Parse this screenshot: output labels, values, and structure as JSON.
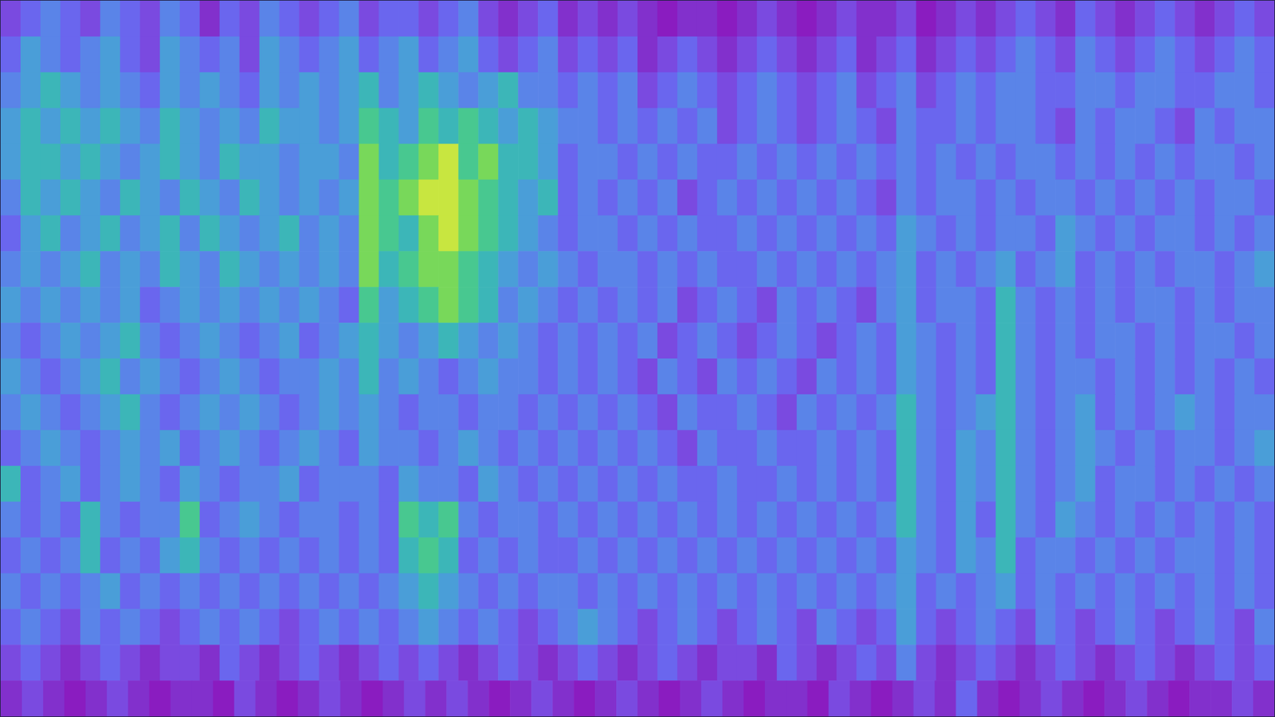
{
  "chart_data": {
    "type": "heatmap",
    "tick_labels": false,
    "zlim": [
      0,
      9
    ],
    "cells": [
      [
        2,
        3,
        4,
        3,
        2,
        4,
        3,
        2,
        4,
        3,
        1,
        3,
        2,
        4,
        3,
        2,
        3,
        4,
        2,
        3,
        3,
        2,
        3,
        4,
        2,
        1,
        2,
        3,
        1,
        2,
        1,
        2,
        1,
        0,
        1,
        1,
        0,
        1,
        2,
        1,
        0,
        1,
        2,
        1,
        1,
        2,
        0,
        1,
        2,
        1,
        2,
        3,
        2,
        1,
        3,
        2,
        1,
        2,
        3,
        2,
        1,
        2,
        3,
        2
      ],
      [
        3,
        5,
        4,
        3,
        4,
        5,
        3,
        2,
        5,
        4,
        3,
        4,
        2,
        5,
        4,
        3,
        4,
        5,
        3,
        4,
        5,
        3,
        4,
        5,
        3,
        2,
        3,
        4,
        2,
        3,
        2,
        3,
        1,
        2,
        3,
        2,
        1,
        2,
        3,
        2,
        1,
        2,
        3,
        1,
        2,
        3,
        1,
        2,
        3,
        2,
        3,
        4,
        3,
        2,
        4,
        3,
        2,
        3,
        4,
        3,
        2,
        3,
        4,
        3
      ],
      [
        4,
        5,
        6,
        5,
        4,
        5,
        4,
        3,
        5,
        4,
        5,
        4,
        3,
        5,
        4,
        5,
        4,
        5,
        6,
        4,
        5,
        6,
        5,
        4,
        5,
        6,
        4,
        4,
        3,
        4,
        3,
        4,
        2,
        3,
        4,
        3,
        2,
        3,
        4,
        3,
        2,
        3,
        4,
        2,
        3,
        4,
        2,
        3,
        4,
        3,
        4,
        4,
        3,
        3,
        4,
        4,
        3,
        4,
        4,
        3,
        3,
        4,
        4,
        3
      ],
      [
        5,
        6,
        5,
        6,
        5,
        6,
        5,
        4,
        6,
        5,
        4,
        5,
        4,
        6,
        5,
        5,
        4,
        5,
        7,
        6,
        5,
        7,
        6,
        7,
        6,
        5,
        6,
        5,
        4,
        4,
        3,
        4,
        3,
        4,
        3,
        4,
        2,
        3,
        4,
        3,
        2,
        3,
        4,
        3,
        2,
        4,
        3,
        3,
        4,
        3,
        4,
        4,
        3,
        2,
        4,
        3,
        4,
        4,
        3,
        2,
        4,
        3,
        4,
        4
      ],
      [
        5,
        6,
        6,
        5,
        6,
        5,
        4,
        5,
        6,
        5,
        4,
        6,
        5,
        5,
        4,
        5,
        5,
        4,
        8,
        6,
        7,
        8,
        9,
        7,
        8,
        6,
        6,
        5,
        3,
        4,
        4,
        3,
        4,
        3,
        4,
        3,
        3,
        4,
        3,
        4,
        3,
        4,
        3,
        4,
        3,
        4,
        3,
        4,
        3,
        4,
        3,
        4,
        4,
        3,
        4,
        3,
        4,
        3,
        4,
        3,
        4,
        4,
        3,
        4
      ],
      [
        4,
        6,
        5,
        6,
        5,
        4,
        6,
        5,
        4,
        6,
        5,
        4,
        6,
        5,
        4,
        5,
        4,
        5,
        8,
        7,
        8,
        9,
        9,
        8,
        7,
        6,
        5,
        6,
        3,
        4,
        3,
        4,
        3,
        4,
        2,
        3,
        4,
        3,
        4,
        3,
        4,
        3,
        4,
        3,
        2,
        4,
        3,
        4,
        4,
        3,
        4,
        3,
        4,
        4,
        3,
        4,
        3,
        4,
        3,
        4,
        3,
        4,
        4,
        3
      ],
      [
        3,
        5,
        6,
        4,
        5,
        6,
        4,
        5,
        6,
        4,
        6,
        5,
        4,
        5,
        6,
        4,
        5,
        4,
        8,
        7,
        6,
        8,
        9,
        8,
        7,
        6,
        5,
        4,
        3,
        4,
        4,
        3,
        4,
        3,
        4,
        3,
        3,
        4,
        3,
        4,
        3,
        4,
        3,
        4,
        3,
        5,
        4,
        3,
        4,
        3,
        4,
        4,
        3,
        5,
        4,
        3,
        4,
        3,
        4,
        4,
        3,
        4,
        3,
        4
      ],
      [
        4,
        5,
        4,
        5,
        6,
        4,
        5,
        4,
        6,
        5,
        4,
        6,
        5,
        4,
        5,
        4,
        5,
        4,
        8,
        6,
        7,
        8,
        8,
        7,
        6,
        5,
        4,
        5,
        4,
        3,
        4,
        4,
        3,
        4,
        3,
        4,
        3,
        3,
        4,
        3,
        4,
        3,
        4,
        3,
        4,
        5,
        3,
        4,
        3,
        4,
        5,
        3,
        4,
        5,
        3,
        4,
        3,
        4,
        3,
        4,
        4,
        3,
        4,
        5
      ],
      [
        5,
        4,
        5,
        4,
        5,
        4,
        5,
        3,
        4,
        5,
        4,
        5,
        4,
        5,
        4,
        5,
        4,
        3,
        7,
        5,
        6,
        7,
        8,
        7,
        6,
        4,
        5,
        4,
        3,
        4,
        3,
        4,
        3,
        4,
        2,
        3,
        4,
        3,
        2,
        4,
        3,
        4,
        3,
        2,
        4,
        5,
        3,
        4,
        4,
        3,
        6,
        4,
        3,
        4,
        3,
        4,
        3,
        4,
        4,
        3,
        4,
        3,
        4,
        4
      ],
      [
        4,
        3,
        4,
        5,
        4,
        5,
        6,
        4,
        3,
        4,
        5,
        4,
        3,
        4,
        5,
        3,
        4,
        5,
        6,
        5,
        4,
        5,
        6,
        5,
        4,
        5,
        4,
        3,
        4,
        3,
        4,
        3,
        4,
        2,
        3,
        4,
        3,
        2,
        3,
        4,
        3,
        2,
        3,
        4,
        3,
        5,
        4,
        3,
        4,
        3,
        6,
        4,
        3,
        4,
        3,
        4,
        4,
        3,
        4,
        3,
        4,
        4,
        3,
        4
      ],
      [
        5,
        4,
        3,
        4,
        5,
        6,
        4,
        5,
        4,
        3,
        4,
        5,
        4,
        3,
        4,
        4,
        5,
        4,
        6,
        4,
        5,
        4,
        3,
        4,
        5,
        4,
        4,
        3,
        4,
        3,
        4,
        3,
        2,
        4,
        3,
        2,
        4,
        3,
        4,
        3,
        2,
        4,
        3,
        4,
        3,
        5,
        4,
        3,
        4,
        3,
        6,
        4,
        3,
        4,
        4,
        3,
        4,
        3,
        4,
        3,
        4,
        3,
        4,
        3
      ],
      [
        4,
        5,
        4,
        3,
        4,
        5,
        6,
        4,
        3,
        4,
        5,
        4,
        5,
        4,
        3,
        4,
        5,
        4,
        5,
        4,
        3,
        4,
        4,
        3,
        4,
        4,
        3,
        4,
        3,
        4,
        3,
        4,
        3,
        2,
        4,
        3,
        3,
        4,
        3,
        2,
        4,
        3,
        4,
        3,
        4,
        6,
        4,
        3,
        4,
        5,
        6,
        4,
        3,
        4,
        5,
        3,
        4,
        3,
        4,
        5,
        4,
        3,
        4,
        4
      ],
      [
        3,
        4,
        5,
        4,
        3,
        4,
        5,
        4,
        5,
        3,
        4,
        5,
        4,
        3,
        4,
        5,
        4,
        3,
        5,
        4,
        4,
        3,
        4,
        5,
        4,
        3,
        4,
        3,
        4,
        3,
        4,
        3,
        4,
        3,
        2,
        4,
        3,
        3,
        4,
        3,
        3,
        4,
        3,
        4,
        3,
        6,
        4,
        3,
        5,
        4,
        6,
        4,
        3,
        4,
        5,
        4,
        3,
        4,
        3,
        4,
        4,
        3,
        4,
        5
      ],
      [
        6,
        3,
        4,
        5,
        3,
        4,
        5,
        4,
        3,
        5,
        4,
        3,
        4,
        4,
        5,
        3,
        4,
        4,
        4,
        3,
        5,
        4,
        4,
        3,
        5,
        4,
        3,
        4,
        3,
        4,
        3,
        4,
        3,
        4,
        3,
        3,
        4,
        3,
        3,
        4,
        3,
        4,
        3,
        4,
        3,
        6,
        4,
        3,
        5,
        4,
        6,
        4,
        3,
        4,
        5,
        3,
        4,
        4,
        3,
        4,
        3,
        4,
        3,
        4
      ],
      [
        4,
        3,
        4,
        3,
        6,
        4,
        3,
        4,
        4,
        7,
        3,
        4,
        5,
        4,
        3,
        4,
        4,
        3,
        4,
        3,
        7,
        6,
        7,
        4,
        3,
        4,
        4,
        3,
        4,
        3,
        4,
        3,
        4,
        3,
        4,
        3,
        4,
        3,
        4,
        3,
        4,
        3,
        4,
        3,
        4,
        6,
        4,
        3,
        5,
        3,
        6,
        4,
        3,
        5,
        4,
        3,
        4,
        3,
        4,
        3,
        4,
        3,
        4,
        3
      ],
      [
        3,
        4,
        3,
        4,
        6,
        3,
        4,
        3,
        5,
        6,
        4,
        3,
        4,
        3,
        4,
        3,
        4,
        3,
        4,
        3,
        6,
        7,
        6,
        3,
        4,
        3,
        4,
        3,
        3,
        4,
        3,
        4,
        3,
        4,
        3,
        4,
        3,
        4,
        3,
        4,
        3,
        4,
        3,
        4,
        3,
        5,
        4,
        3,
        5,
        4,
        6,
        3,
        4,
        4,
        3,
        4,
        3,
        4,
        3,
        4,
        4,
        3,
        4,
        3
      ],
      [
        4,
        3,
        4,
        3,
        4,
        5,
        3,
        4,
        3,
        4,
        3,
        4,
        3,
        4,
        3,
        4,
        3,
        4,
        3,
        4,
        5,
        6,
        5,
        4,
        3,
        4,
        3,
        4,
        4,
        3,
        4,
        3,
        4,
        3,
        4,
        3,
        4,
        3,
        4,
        3,
        4,
        3,
        4,
        3,
        4,
        5,
        3,
        4,
        3,
        4,
        5,
        3,
        4,
        3,
        4,
        3,
        4,
        3,
        4,
        3,
        4,
        3,
        4,
        3
      ],
      [
        3,
        4,
        3,
        2,
        4,
        3,
        4,
        3,
        2,
        3,
        4,
        3,
        4,
        3,
        2,
        3,
        4,
        3,
        4,
        3,
        4,
        5,
        4,
        3,
        4,
        3,
        2,
        3,
        4,
        5,
        4,
        3,
        2,
        3,
        4,
        3,
        2,
        3,
        4,
        3,
        2,
        4,
        3,
        2,
        3,
        5,
        3,
        2,
        3,
        4,
        3,
        2,
        4,
        3,
        2,
        3,
        4,
        3,
        2,
        3,
        4,
        3,
        2,
        4
      ],
      [
        2,
        3,
        2,
        1,
        2,
        3,
        2,
        1,
        2,
        2,
        1,
        3,
        2,
        1,
        2,
        3,
        2,
        1,
        2,
        3,
        2,
        3,
        2,
        1,
        2,
        3,
        2,
        1,
        2,
        3,
        2,
        1,
        2,
        3,
        2,
        1,
        2,
        2,
        1,
        3,
        2,
        1,
        2,
        3,
        2,
        4,
        2,
        1,
        2,
        3,
        2,
        1,
        2,
        3,
        2,
        1,
        2,
        3,
        2,
        1,
        2,
        3,
        2,
        3
      ],
      [
        1,
        2,
        1,
        0,
        1,
        2,
        1,
        0,
        1,
        1,
        0,
        2,
        1,
        0,
        1,
        2,
        1,
        0,
        1,
        2,
        1,
        2,
        1,
        0,
        1,
        2,
        1,
        0,
        1,
        2,
        1,
        0,
        1,
        2,
        1,
        0,
        1,
        1,
        0,
        2,
        1,
        0,
        1,
        2,
        1,
        3,
        1,
        0,
        1,
        2,
        1,
        0,
        1,
        2,
        1,
        0,
        1,
        1,
        2,
        1
      ]
    ]
  }
}
